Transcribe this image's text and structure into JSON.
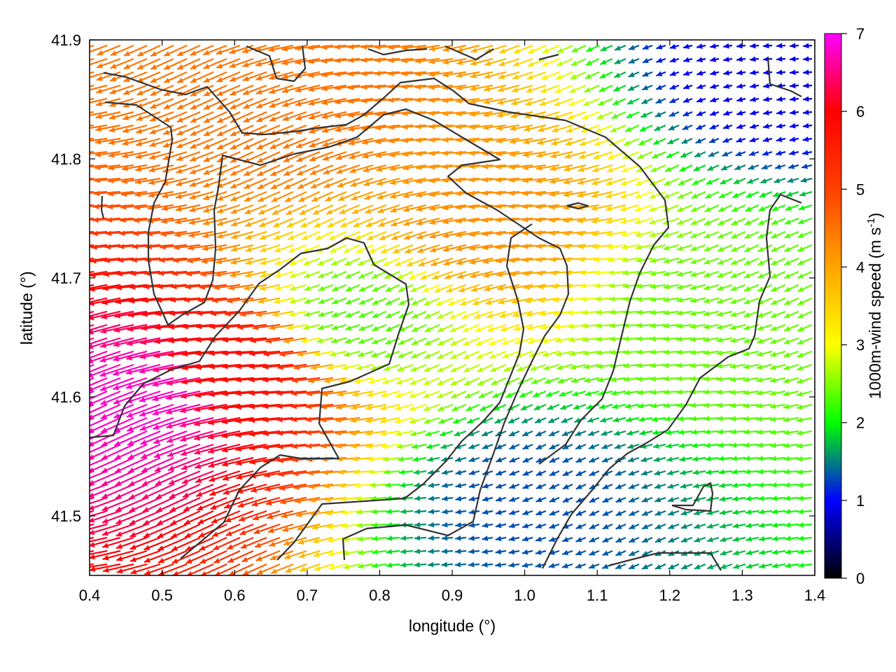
{
  "chart_data": {
    "type": "vector-field",
    "xlabel": "longitude (°)",
    "ylabel": "latitude (°)",
    "xlim": [
      0.4,
      1.4
    ],
    "ylim": [
      41.45,
      41.9
    ],
    "xticks": [
      "0.4",
      "0.5",
      "0.6",
      "0.7",
      "0.8",
      "0.9",
      "1.0",
      "1.1",
      "1.2",
      "1.3",
      "1.4"
    ],
    "yticks": [
      "41.5",
      "41.6",
      "41.7",
      "41.8",
      "41.9"
    ],
    "colorbar": {
      "label": "1000m-wind speed (m s",
      "label_sup": "-1",
      "label_end": ")",
      "range": [
        0,
        7
      ],
      "ticks": [
        "0",
        "1",
        "2",
        "3",
        "4",
        "5",
        "6",
        "7"
      ],
      "colors": [
        "#000000",
        "#0000ff",
        "#00ff00",
        "#ffff00",
        "#ffa500",
        "#ff4000",
        "#ff0000",
        "#ff00ff"
      ]
    },
    "wind_direction": "mostly westward (arrows point to the west / west-northwest)",
    "speed_regions": [
      {
        "region": "southwest corner",
        "lon": [
          0.4,
          0.6
        ],
        "lat": [
          41.45,
          41.75
        ],
        "speed": 6.8
      },
      {
        "region": "west band",
        "lon": [
          0.55,
          0.7
        ],
        "lat": [
          41.5,
          41.75
        ],
        "speed": 5.8
      },
      {
        "region": "north strip",
        "lon": [
          0.4,
          1.0
        ],
        "lat": [
          41.8,
          41.9
        ],
        "speed": 4.5
      },
      {
        "region": "central ridge",
        "lon": [
          0.8,
          1.1
        ],
        "lat": [
          41.65,
          41.85
        ],
        "speed": 4.2
      },
      {
        "region": "central basin",
        "lon": [
          0.74,
          0.82
        ],
        "lat": [
          41.62,
          41.72
        ],
        "speed": 2.3
      },
      {
        "region": "east band",
        "lon": [
          1.15,
          1.4
        ],
        "lat": [
          41.5,
          41.85
        ],
        "speed": 2.4
      },
      {
        "region": "low-speed valley",
        "lon": [
          0.97,
          1.05
        ],
        "lat": [
          41.45,
          41.58
        ],
        "speed": 1.3
      },
      {
        "region": "northeast corner",
        "lon": [
          1.33,
          1.4
        ],
        "lat": [
          41.86,
          41.9
        ],
        "speed": 0.9
      }
    ],
    "grid": false,
    "legend": "none",
    "contour_color": "#333333"
  }
}
